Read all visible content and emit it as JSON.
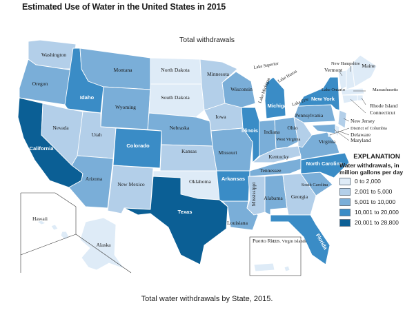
{
  "title": "Estimated Use of Water in the United States in 2015",
  "subtitle": "Total withdrawals",
  "caption": "Total water withdrawals by State, 2015.",
  "legend": {
    "heading": "EXPLANATION",
    "subheading": "Water withdrawals, in million gallons per day",
    "classes": [
      {
        "label": "0 to 2,000",
        "color": "#deebf7"
      },
      {
        "label": "2,001 to 5,000",
        "color": "#b3cfe9"
      },
      {
        "label": "5,001 to 10,000",
        "color": "#7aaed8"
      },
      {
        "label": "10,001 to 20,000",
        "color": "#3a8cc6"
      },
      {
        "label": "20,001 to 28,800",
        "color": "#0b5f95"
      }
    ]
  },
  "states": [
    {
      "label": "Washington",
      "class": 1
    },
    {
      "label": "Oregon",
      "class": 2
    },
    {
      "label": "California",
      "class": 4
    },
    {
      "label": "Idaho",
      "class": 3
    },
    {
      "label": "Nevada",
      "class": 1
    },
    {
      "label": "Montana",
      "class": 2
    },
    {
      "label": "Wyoming",
      "class": 2
    },
    {
      "label": "Utah",
      "class": 1
    },
    {
      "label": "Arizona",
      "class": 2
    },
    {
      "label": "Colorado",
      "class": 3
    },
    {
      "label": "New Mexico",
      "class": 1
    },
    {
      "label": "North Dakota",
      "class": 0
    },
    {
      "label": "South Dakota",
      "class": 0
    },
    {
      "label": "Nebraska",
      "class": 2
    },
    {
      "label": "Kansas",
      "class": 1
    },
    {
      "label": "Oklahoma",
      "class": 0
    },
    {
      "label": "Texas",
      "class": 4
    },
    {
      "label": "Minnesota",
      "class": 1
    },
    {
      "label": "Iowa",
      "class": 1
    },
    {
      "label": "Missouri",
      "class": 2
    },
    {
      "label": "Arkansas",
      "class": 3
    },
    {
      "label": "Louisiana",
      "class": 2
    },
    {
      "label": "Wisconsin",
      "class": 2
    },
    {
      "label": "Illinois",
      "class": 3
    },
    {
      "label": "Michigan",
      "class": 3
    },
    {
      "label": "Indiana",
      "class": 2
    },
    {
      "label": "Ohio",
      "class": 2
    },
    {
      "label": "Kentucky",
      "class": 1
    },
    {
      "label": "Tennessee",
      "class": 2
    },
    {
      "label": "Mississippi",
      "class": 1
    },
    {
      "label": "Alabama",
      "class": 2
    },
    {
      "label": "Georgia",
      "class": 1
    },
    {
      "label": "Florida",
      "class": 3
    },
    {
      "label": "South Carolina",
      "class": 2
    },
    {
      "label": "North Carolina",
      "class": 3
    },
    {
      "label": "Virginia",
      "class": 2
    },
    {
      "label": "West Virginia",
      "class": 1
    },
    {
      "label": "Pennsylvania",
      "class": 2
    },
    {
      "label": "New York",
      "class": 3
    },
    {
      "label": "Vermont",
      "class": 0
    },
    {
      "label": "New Hampshire",
      "class": 0
    },
    {
      "label": "Maine",
      "class": 0
    },
    {
      "label": "Massachusetts",
      "class": 0
    },
    {
      "label": "Rhode Island",
      "class": 0
    },
    {
      "label": "Connecticut",
      "class": 0
    },
    {
      "label": "New Jersey",
      "class": 1
    },
    {
      "label": "Delaware",
      "class": 0
    },
    {
      "label": "Maryland",
      "class": 2
    },
    {
      "label": "District of Columbia",
      "class": 0
    },
    {
      "label": "Alaska",
      "class": 0
    },
    {
      "label": "Hawaii",
      "class": 0
    },
    {
      "label": "Puerto Rico",
      "class": 0
    },
    {
      "label": "U.S. Virgin Islands",
      "class": 0
    }
  ],
  "lakes": [
    "Lake Superior",
    "Lake Michigan",
    "Lake Huron",
    "Lake Ontario",
    "Lake Erie"
  ]
}
